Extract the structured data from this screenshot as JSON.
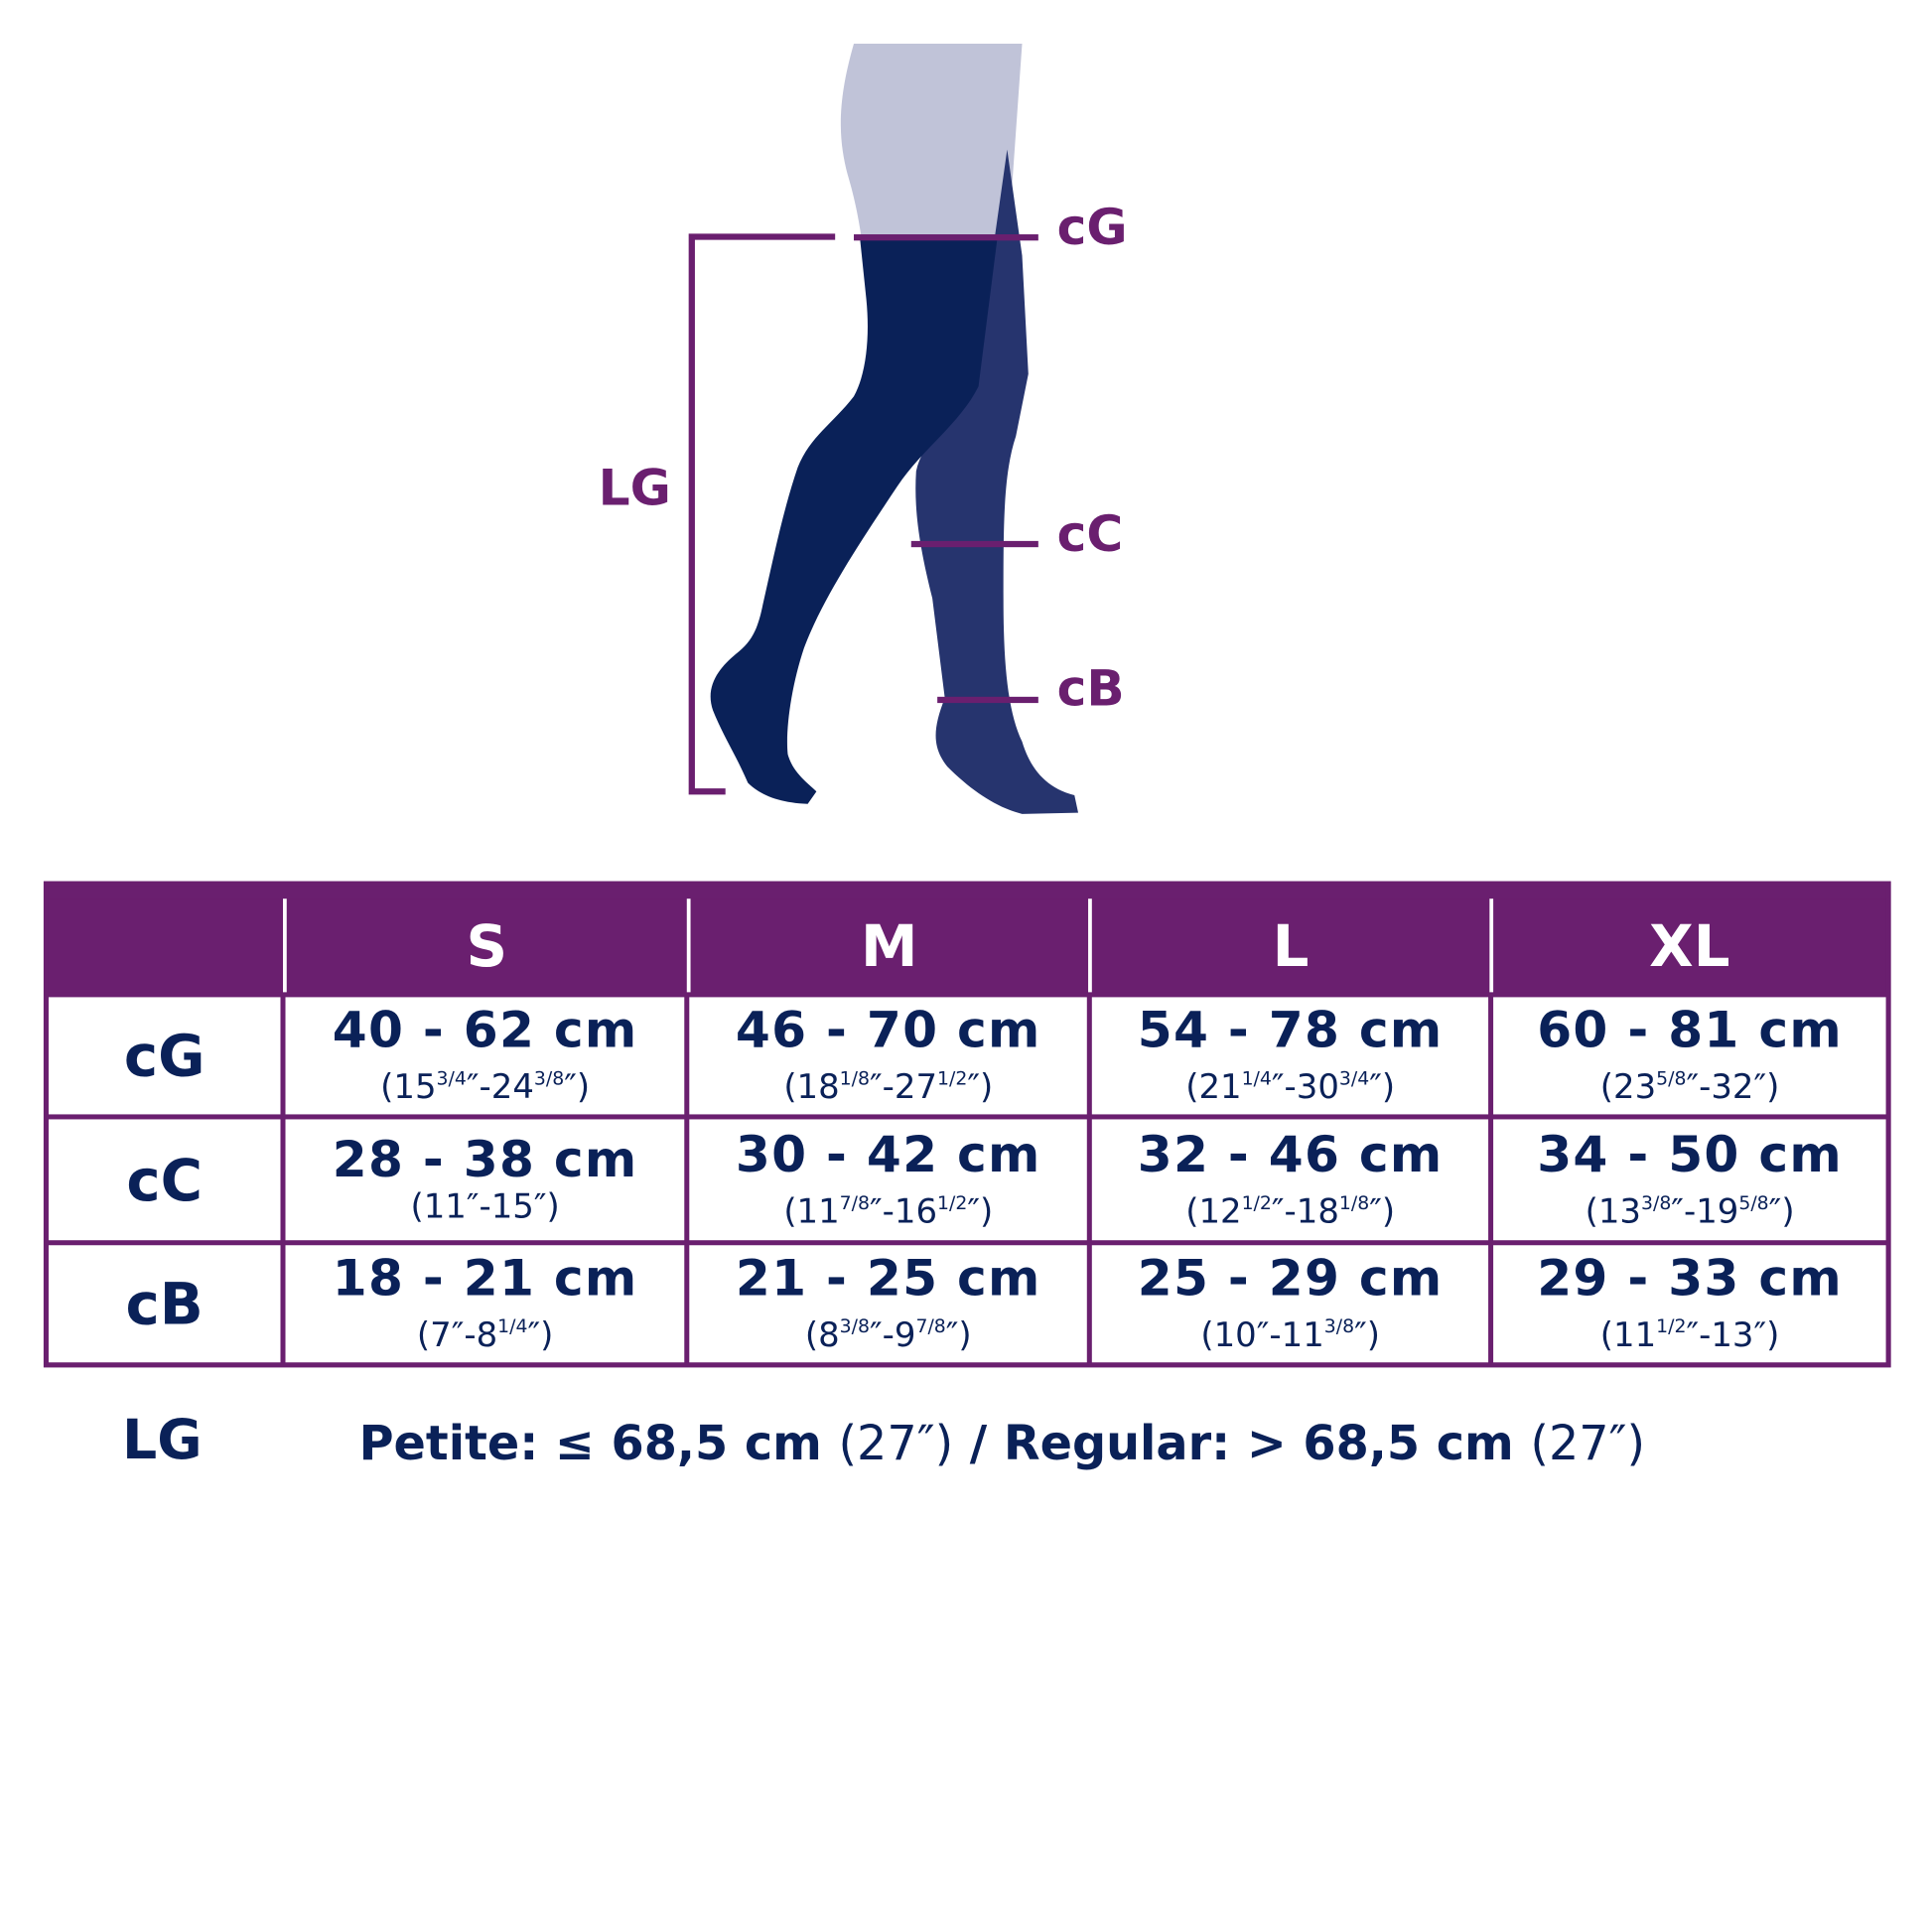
{
  "colors": {
    "accent": "#6a1f6f",
    "navy": "#0a2158",
    "leg_back": "#26346e",
    "skin": "#c0c3d8"
  },
  "figure": {
    "labels": {
      "cG": "cG",
      "cC": "cC",
      "cB": "cB",
      "LG": "LG"
    }
  },
  "table": {
    "headers": [
      "",
      "S",
      "M",
      "L",
      "XL"
    ],
    "rows": [
      {
        "label": "cG",
        "cells": [
          {
            "main": "40 - 62 cm",
            "sub": [
              {
                "t": "(15"
              },
              {
                "s": "3/4"
              },
              {
                "t": "″-24"
              },
              {
                "s": "3/8"
              },
              {
                "t": "″)"
              }
            ]
          },
          {
            "main": "46 - 70 cm",
            "sub": [
              {
                "t": "(18"
              },
              {
                "s": "1/8"
              },
              {
                "t": "″-27"
              },
              {
                "s": "1/2"
              },
              {
                "t": "″)"
              }
            ]
          },
          {
            "main": "54 - 78 cm",
            "sub": [
              {
                "t": "(21"
              },
              {
                "s": "1/4"
              },
              {
                "t": "″-30"
              },
              {
                "s": "3/4"
              },
              {
                "t": "″)"
              }
            ]
          },
          {
            "main": "60 - 81 cm",
            "sub": [
              {
                "t": "(23"
              },
              {
                "s": "5/8"
              },
              {
                "t": "″-32″)"
              }
            ]
          }
        ]
      },
      {
        "label": "cC",
        "cells": [
          {
            "main": "28 - 38 cm",
            "sub": [
              {
                "t": "(11″-15″)"
              }
            ]
          },
          {
            "main": "30 - 42 cm",
            "sub": [
              {
                "t": "(11"
              },
              {
                "s": "7/8"
              },
              {
                "t": "″-16"
              },
              {
                "s": "1/2"
              },
              {
                "t": "″)"
              }
            ]
          },
          {
            "main": "32 - 46 cm",
            "sub": [
              {
                "t": "(12"
              },
              {
                "s": "1/2"
              },
              {
                "t": "″-18"
              },
              {
                "s": "1/8"
              },
              {
                "t": "″)"
              }
            ]
          },
          {
            "main": "34 - 50 cm",
            "sub": [
              {
                "t": "(13"
              },
              {
                "s": "3/8"
              },
              {
                "t": "″-19"
              },
              {
                "s": "5/8"
              },
              {
                "t": "″)"
              }
            ]
          }
        ]
      },
      {
        "label": "cB",
        "cells": [
          {
            "main": "18 - 21 cm",
            "sub": [
              {
                "t": "(7″-8"
              },
              {
                "s": "1/4"
              },
              {
                "t": "″)"
              }
            ]
          },
          {
            "main": "21 - 25 cm",
            "sub": [
              {
                "t": "(8"
              },
              {
                "s": "3/8"
              },
              {
                "t": "″-9"
              },
              {
                "s": "7/8"
              },
              {
                "t": "″)"
              }
            ]
          },
          {
            "main": "25 - 29 cm",
            "sub": [
              {
                "t": "(10″-11"
              },
              {
                "s": "3/8"
              },
              {
                "t": "″)"
              }
            ]
          },
          {
            "main": "29 - 33 cm",
            "sub": [
              {
                "t": "(11"
              },
              {
                "s": "1/2"
              },
              {
                "t": "″-13″)"
              }
            ]
          }
        ]
      }
    ]
  },
  "length": {
    "label": "LG",
    "parts": [
      {
        "b": "Petite: ≤ 68,5 cm "
      },
      {
        "n": "(27″)"
      },
      {
        "b": " / Regular: > 68,5 cm "
      },
      {
        "n": "(27″)"
      }
    ]
  }
}
